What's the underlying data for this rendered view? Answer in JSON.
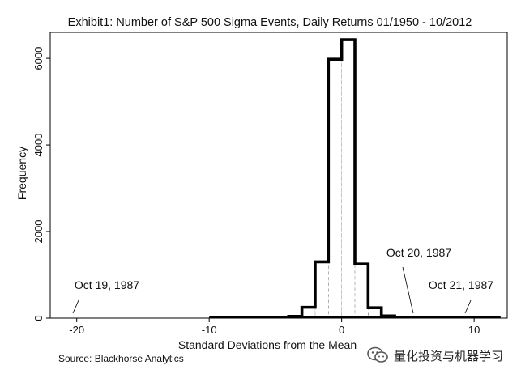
{
  "chart_data": {
    "type": "histogram",
    "title": "Exhibit1: Number of S&P 500 Sigma Events, Daily Returns 01/1950 - 10/2012",
    "xlabel": "Standard Deviations from the Mean",
    "ylabel": "Frequency",
    "xlim": [
      -22,
      12.5
    ],
    "ylim": [
      0,
      6600
    ],
    "xticks": [
      -20,
      -10,
      0,
      10
    ],
    "yticks": [
      0,
      2000,
      4000,
      6000
    ],
    "grid": false,
    "bin_width": 1,
    "bins": [
      {
        "x0": -4,
        "x1": -3,
        "count": 40
      },
      {
        "x0": -3,
        "x1": -2,
        "count": 250
      },
      {
        "x0": -2,
        "x1": -1,
        "count": 1300
      },
      {
        "x0": -1,
        "x1": 0,
        "count": 5980
      },
      {
        "x0": 0,
        "x1": 1,
        "count": 6430
      },
      {
        "x0": 1,
        "x1": 2,
        "count": 1250
      },
      {
        "x0": 2,
        "x1": 3,
        "count": 240
      },
      {
        "x0": 3,
        "x1": 4,
        "count": 50
      }
    ],
    "tail_range": [
      -10,
      12
    ],
    "annotations": [
      {
        "text": "Oct 19, 1987",
        "x": -20.5,
        "y": 0
      },
      {
        "text": "Oct 20, 1987",
        "x": 5.5,
        "y": 0
      },
      {
        "text": "Oct 21, 1987",
        "x": 9.5,
        "y": 0
      }
    ],
    "source": "Source: Blackhorse Analytics"
  },
  "watermark": {
    "text": "量化投资与机器学习",
    "icon": "wechat-icon"
  }
}
